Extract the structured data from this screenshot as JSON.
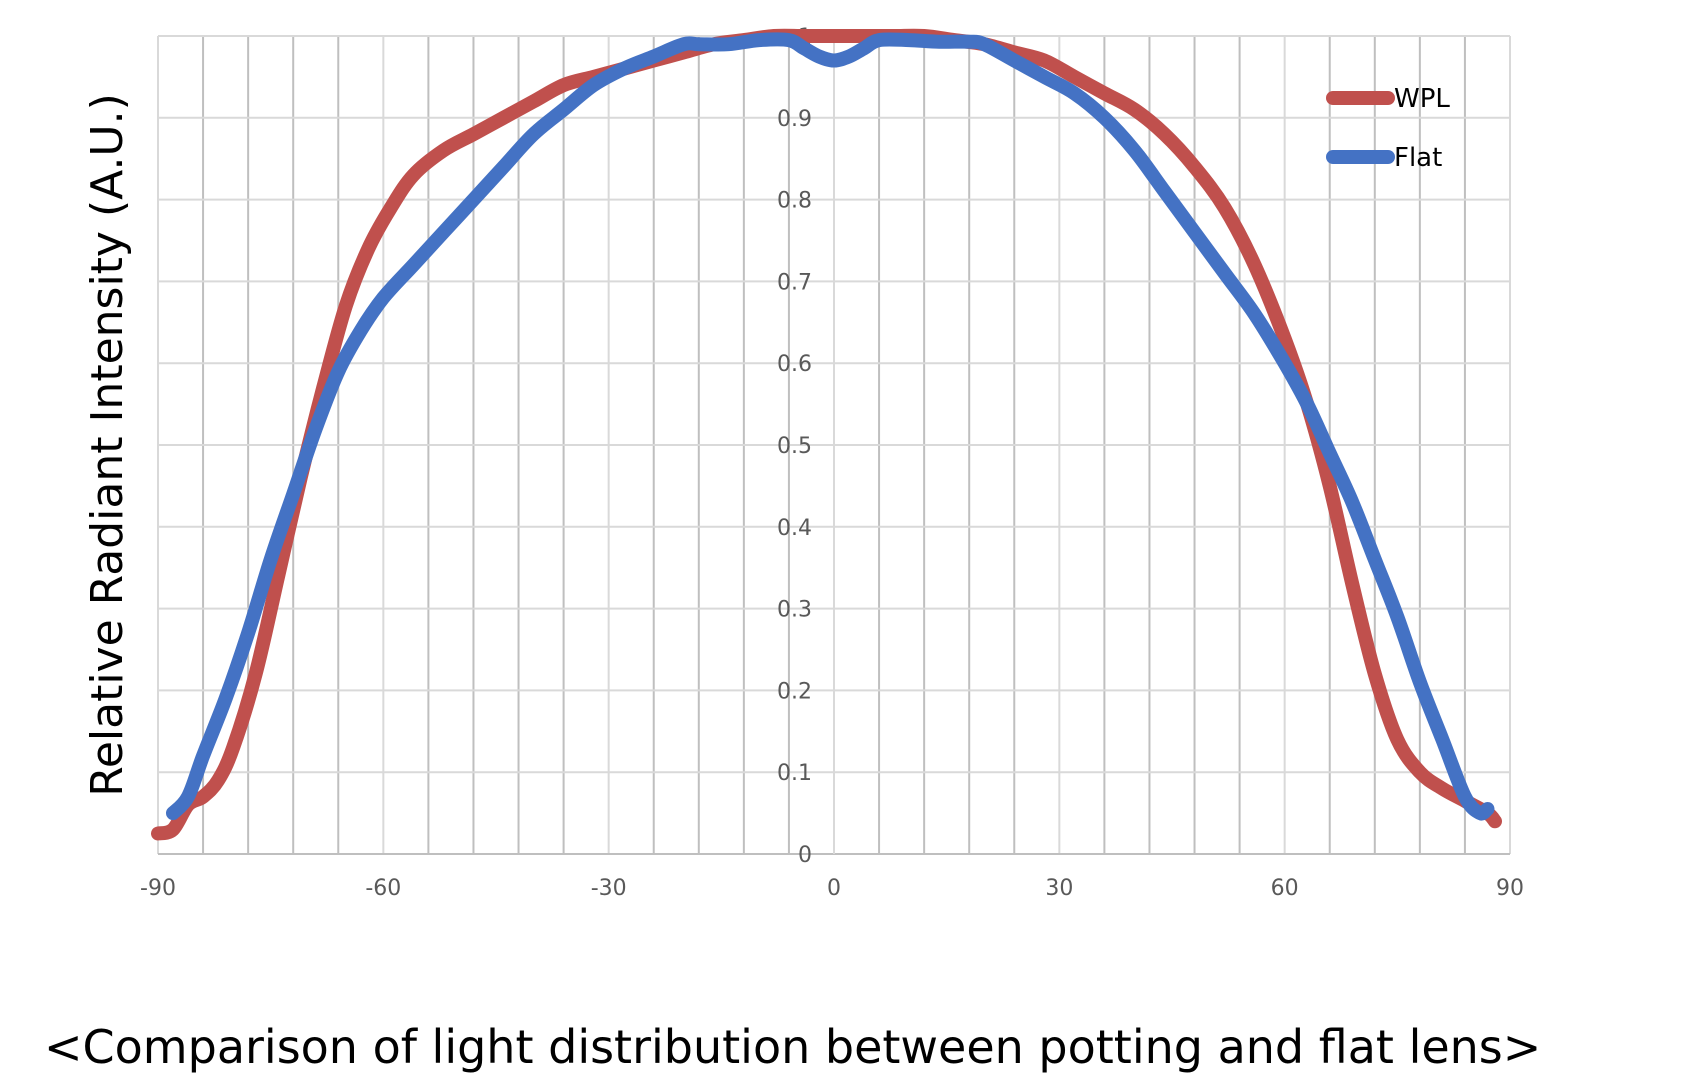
{
  "caption": "<Comparison of light distribution between potting and flat lens>",
  "chart_data": {
    "type": "line",
    "title": "",
    "xlabel": "",
    "ylabel": "Relative Radiant Intensity (A.U.)",
    "xlim": [
      -90,
      90
    ],
    "ylim": [
      0,
      1
    ],
    "x_ticks": [
      -90,
      -60,
      -30,
      0,
      30,
      60,
      90
    ],
    "y_ticks": [
      0,
      0.1,
      0.2,
      0.3,
      0.4,
      0.5,
      0.6,
      0.7,
      0.8,
      0.9,
      1
    ],
    "grid": true,
    "legend_position": "top-right",
    "series": [
      {
        "name": "WPL",
        "color": "#C0504D",
        "points": [
          [
            -90,
            0.025
          ],
          [
            -88,
            0.03
          ],
          [
            -86,
            0.06
          ],
          [
            -84,
            0.07
          ],
          [
            -82,
            0.09
          ],
          [
            -80,
            0.13
          ],
          [
            -77,
            0.22
          ],
          [
            -74,
            0.34
          ],
          [
            -71,
            0.46
          ],
          [
            -68,
            0.57
          ],
          [
            -65,
            0.67
          ],
          [
            -62,
            0.74
          ],
          [
            -59,
            0.79
          ],
          [
            -56,
            0.83
          ],
          [
            -52,
            0.86
          ],
          [
            -48,
            0.88
          ],
          [
            -44,
            0.9
          ],
          [
            -40,
            0.92
          ],
          [
            -36,
            0.94
          ],
          [
            -32,
            0.95
          ],
          [
            -28,
            0.96
          ],
          [
            -24,
            0.97
          ],
          [
            -20,
            0.98
          ],
          [
            -16,
            0.99
          ],
          [
            -12,
            0.995
          ],
          [
            -8,
            1.0
          ],
          [
            -4,
            1.0
          ],
          [
            0,
            1.0
          ],
          [
            4,
            1.0
          ],
          [
            8,
            1.0
          ],
          [
            12,
            1.0
          ],
          [
            16,
            0.995
          ],
          [
            20,
            0.99
          ],
          [
            24,
            0.98
          ],
          [
            28,
            0.97
          ],
          [
            32,
            0.95
          ],
          [
            36,
            0.93
          ],
          [
            40,
            0.91
          ],
          [
            44,
            0.88
          ],
          [
            48,
            0.84
          ],
          [
            52,
            0.79
          ],
          [
            56,
            0.72
          ],
          [
            60,
            0.63
          ],
          [
            63,
            0.55
          ],
          [
            66,
            0.45
          ],
          [
            69,
            0.33
          ],
          [
            72,
            0.22
          ],
          [
            75,
            0.14
          ],
          [
            78,
            0.1
          ],
          [
            81,
            0.08
          ],
          [
            84,
            0.065
          ],
          [
            87,
            0.05
          ],
          [
            88,
            0.04
          ]
        ]
      },
      {
        "name": "Flat",
        "color": "#4472C4",
        "points": [
          [
            -88,
            0.05
          ],
          [
            -86,
            0.07
          ],
          [
            -84,
            0.12
          ],
          [
            -81,
            0.19
          ],
          [
            -78,
            0.27
          ],
          [
            -75,
            0.36
          ],
          [
            -72,
            0.44
          ],
          [
            -69,
            0.52
          ],
          [
            -66,
            0.59
          ],
          [
            -63,
            0.64
          ],
          [
            -60,
            0.68
          ],
          [
            -56,
            0.72
          ],
          [
            -52,
            0.76
          ],
          [
            -48,
            0.8
          ],
          [
            -44,
            0.84
          ],
          [
            -40,
            0.88
          ],
          [
            -36,
            0.91
          ],
          [
            -32,
            0.94
          ],
          [
            -28,
            0.96
          ],
          [
            -24,
            0.975
          ],
          [
            -20,
            0.99
          ],
          [
            -18,
            0.99
          ],
          [
            -14,
            0.99
          ],
          [
            -10,
            0.995
          ],
          [
            -6,
            0.995
          ],
          [
            -4,
            0.985
          ],
          [
            -2,
            0.975
          ],
          [
            0,
            0.97
          ],
          [
            2,
            0.975
          ],
          [
            4,
            0.985
          ],
          [
            6,
            0.995
          ],
          [
            10,
            0.995
          ],
          [
            14,
            0.993
          ],
          [
            18,
            0.993
          ],
          [
            20,
            0.99
          ],
          [
            24,
            0.97
          ],
          [
            28,
            0.95
          ],
          [
            32,
            0.93
          ],
          [
            36,
            0.9
          ],
          [
            40,
            0.86
          ],
          [
            44,
            0.81
          ],
          [
            48,
            0.76
          ],
          [
            52,
            0.71
          ],
          [
            56,
            0.66
          ],
          [
            60,
            0.6
          ],
          [
            63,
            0.55
          ],
          [
            66,
            0.49
          ],
          [
            69,
            0.43
          ],
          [
            72,
            0.36
          ],
          [
            75,
            0.29
          ],
          [
            78,
            0.21
          ],
          [
            81,
            0.14
          ],
          [
            84,
            0.07
          ],
          [
            86,
            0.05
          ],
          [
            87,
            0.055
          ]
        ]
      }
    ]
  }
}
